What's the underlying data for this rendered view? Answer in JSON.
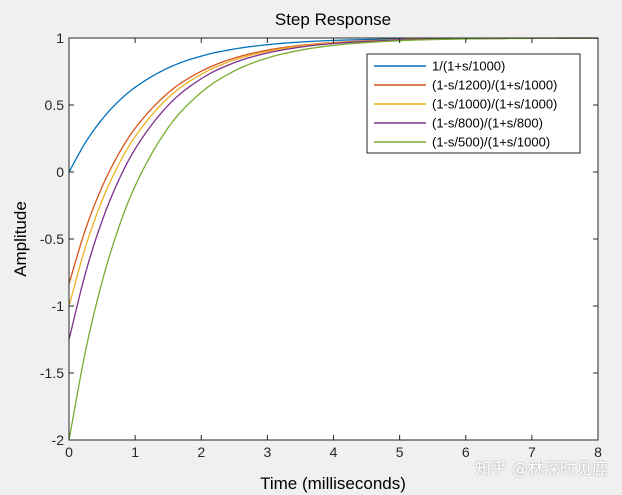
{
  "chart_data": {
    "type": "line",
    "title": "Step Response",
    "xlabel": "Time (milliseconds)",
    "ylabel": "Amplitude",
    "xlim": [
      0,
      8
    ],
    "ylim": [
      -2,
      1
    ],
    "x_ticks": [
      "0",
      "1",
      "2",
      "3",
      "4",
      "5",
      "6",
      "7",
      "8"
    ],
    "y_ticks": [
      "-2",
      "-1.5",
      "-1",
      "-0.5",
      "0",
      "0.5",
      "1"
    ],
    "grid": false,
    "legend_position": "top-right",
    "series": [
      {
        "name": "1/(1+s/1000)",
        "color": "#0072bd",
        "x": [
          0,
          0.25,
          0.5,
          0.75,
          1,
          1.5,
          2,
          2.5,
          3,
          3.5,
          4,
          5,
          6,
          7,
          8
        ],
        "y": [
          0,
          0.221,
          0.393,
          0.528,
          0.632,
          0.777,
          0.865,
          0.918,
          0.95,
          0.97,
          0.982,
          0.993,
          0.998,
          0.999,
          1.0
        ]
      },
      {
        "name": "(1-s/1200)/(1+s/1000)",
        "color": "#d95319",
        "x": [
          0,
          0.25,
          0.5,
          0.75,
          1,
          1.5,
          2,
          2.5,
          3,
          3.5,
          4,
          5,
          6,
          7,
          8
        ],
        "y": [
          -0.833,
          -0.427,
          -0.112,
          0.134,
          0.326,
          0.591,
          0.752,
          0.85,
          0.909,
          0.945,
          0.966,
          0.988,
          0.995,
          0.998,
          0.999
        ]
      },
      {
        "name": "(1-s/1000)/(1+s/1000)",
        "color": "#edb120",
        "x": [
          0,
          0.25,
          0.5,
          0.75,
          1,
          1.5,
          2,
          2.5,
          3,
          3.5,
          4,
          5,
          6,
          7,
          8
        ],
        "y": [
          -1.0,
          -0.558,
          -0.213,
          0.055,
          0.264,
          0.554,
          0.729,
          0.836,
          0.9,
          0.94,
          0.963,
          0.987,
          0.995,
          0.998,
          0.999
        ]
      },
      {
        "name": "(1-s/800)/(1+s/800)",
        "color": "#7e2f8e",
        "x": [
          0,
          0.25,
          0.5,
          0.75,
          1,
          1.5,
          2,
          2.5,
          3,
          3.5,
          4,
          5,
          6,
          7,
          8
        ],
        "y": [
          -1.25,
          -0.753,
          -0.365,
          -0.063,
          0.172,
          0.498,
          0.696,
          0.816,
          0.888,
          0.932,
          0.959,
          0.985,
          0.994,
          0.998,
          0.999
        ]
      },
      {
        "name": "(1-s/500)/(1+s/1000)",
        "color": "#77ac30",
        "x": [
          0,
          0.25,
          0.5,
          0.75,
          1,
          1.5,
          2,
          2.5,
          3,
          3.5,
          4,
          5,
          6,
          7,
          8
        ],
        "y": [
          -2.0,
          -1.336,
          -0.82,
          -0.417,
          -0.104,
          0.331,
          0.594,
          0.754,
          0.851,
          0.909,
          0.945,
          0.98,
          0.993,
          0.997,
          0.999
        ]
      }
    ]
  },
  "watermark": "知乎 @林深时见鹿"
}
